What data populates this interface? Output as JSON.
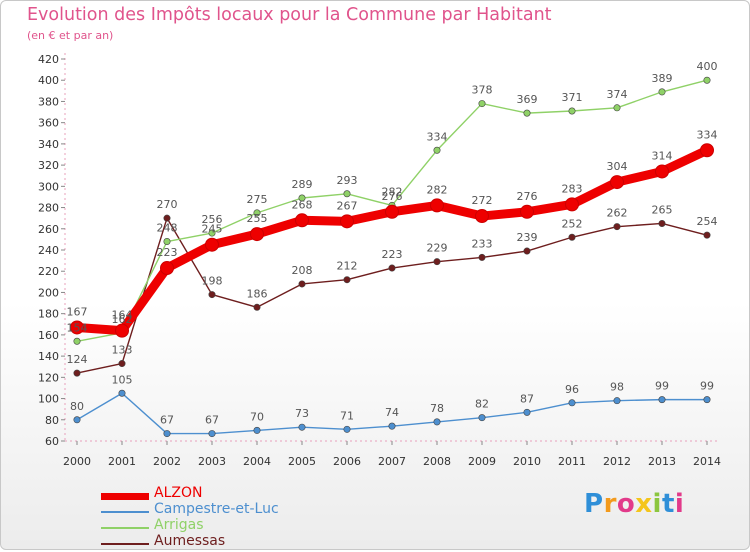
{
  "chart_data": {
    "type": "line",
    "title": "Evolution des Impôts locaux pour la Commune par Habitant",
    "subtitle": "(en € et par an)",
    "xlabel": "",
    "ylabel": "",
    "categories": [
      "2000",
      "2001",
      "2002",
      "2003",
      "2004",
      "2005",
      "2006",
      "2007",
      "2008",
      "2009",
      "2010",
      "2011",
      "2012",
      "2013",
      "2014"
    ],
    "ylim": [
      60,
      420
    ],
    "yticks": [
      60,
      80,
      100,
      120,
      140,
      160,
      180,
      200,
      220,
      240,
      260,
      280,
      300,
      320,
      340,
      360,
      380,
      400,
      420
    ],
    "grid": false,
    "legend_position": "bottom-left",
    "series": [
      {
        "name": "ALZON",
        "color": "#ee0000",
        "values": [
          167,
          164,
          223,
          245,
          255,
          268,
          267,
          276,
          282,
          272,
          276,
          283,
          304,
          314,
          334
        ]
      },
      {
        "name": "Campestre-et-Luc",
        "color": "#4d8fcf",
        "values": [
          80,
          105,
          67,
          67,
          70,
          73,
          71,
          74,
          78,
          82,
          87,
          96,
          98,
          99,
          99
        ]
      },
      {
        "name": "Arrigas",
        "color": "#8fd167",
        "values": [
          154,
          162,
          248,
          256,
          275,
          289,
          293,
          282,
          334,
          378,
          369,
          371,
          374,
          389,
          400
        ]
      },
      {
        "name": "Aumessas",
        "color": "#6e1e1e",
        "values": [
          124,
          133,
          270,
          198,
          186,
          208,
          212,
          223,
          229,
          233,
          239,
          252,
          262,
          265,
          254
        ]
      }
    ]
  },
  "logo": {
    "letters": [
      "P",
      "r",
      "o",
      "x",
      "i",
      "t",
      "i"
    ],
    "colors": [
      "#2f8fd8",
      "#f39a1c",
      "#e23a8a",
      "#f4c51c",
      "#8cc63f",
      "#2f8fd8",
      "#e23a8a"
    ]
  }
}
